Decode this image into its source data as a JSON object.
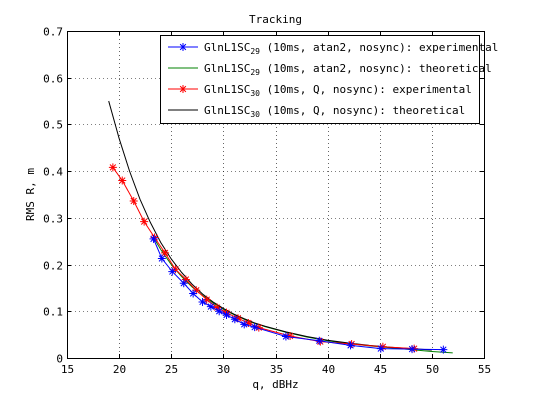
{
  "chart_data": {
    "type": "line",
    "title": "Tracking",
    "xlabel": "q, dBHz",
    "ylabel": "RMS R, m",
    "xlim": [
      15,
      55
    ],
    "ylim": [
      0,
      0.7
    ],
    "xticks": [
      15,
      20,
      25,
      30,
      35,
      40,
      45,
      50,
      55
    ],
    "yticks": [
      0,
      0.1,
      0.2,
      0.3,
      0.4,
      0.5,
      0.6,
      0.7
    ],
    "xtick_labels": [
      "15",
      "20",
      "25",
      "30",
      "35",
      "40",
      "45",
      "50",
      "55"
    ],
    "ytick_labels": [
      "0",
      "0.1",
      "0.2",
      "0.3",
      "0.4",
      "0.5",
      "0.6",
      "0.7"
    ],
    "grid": true,
    "legend_position": "top-right",
    "series": [
      {
        "name_main": "GlnL1SC",
        "name_sub": "29",
        "name_rest": " (10ms, atan2, nosync): experimental",
        "color": "#0000ff",
        "marker": "asterisk",
        "line": true,
        "x": [
          23.3,
          24.1,
          25.1,
          26.2,
          27.1,
          28.0,
          28.8,
          29.6,
          30.3,
          31.1,
          32.0,
          33.0,
          36.0,
          39.2,
          42.2,
          45.1,
          48.1,
          51.1
        ],
        "y": [
          0.255,
          0.213,
          0.185,
          0.16,
          0.138,
          0.12,
          0.11,
          0.1,
          0.092,
          0.083,
          0.072,
          0.066,
          0.046,
          0.037,
          0.027,
          0.02,
          0.019,
          0.018
        ]
      },
      {
        "name_main": "GlnL1SC",
        "name_sub": "29",
        "name_rest": " (10ms, atan2, nosync): theoretical",
        "color": "#008000",
        "marker": "none",
        "line": true,
        "x": [
          23.3,
          24,
          25,
          26,
          27,
          28,
          29,
          30,
          31,
          32,
          33,
          34,
          36,
          38,
          40,
          42,
          44,
          46,
          48,
          50,
          52
        ],
        "y": [
          0.258,
          0.232,
          0.2,
          0.174,
          0.152,
          0.134,
          0.118,
          0.104,
          0.093,
          0.083,
          0.074,
          0.067,
          0.055,
          0.045,
          0.037,
          0.031,
          0.026,
          0.022,
          0.018,
          0.014,
          0.011
        ]
      },
      {
        "name_main": "GlnL1SC",
        "name_sub": "30",
        "name_rest": " (10ms, Q, nosync): experimental",
        "color": "#ff0000",
        "marker": "asterisk",
        "line": true,
        "x": [
          19.4,
          20.3,
          21.4,
          22.4,
          23.4,
          24.4,
          25.4,
          26.4,
          27.4,
          28.4,
          29.4,
          30.3,
          31.4,
          32.4,
          33.4,
          36.4,
          39.3,
          42.3,
          45.3,
          48.3
        ],
        "y": [
          0.408,
          0.38,
          0.336,
          0.292,
          0.258,
          0.225,
          0.19,
          0.168,
          0.145,
          0.125,
          0.108,
          0.097,
          0.085,
          0.075,
          0.065,
          0.047,
          0.035,
          0.03,
          0.024,
          0.02
        ]
      },
      {
        "name_main": "GlnL1SC",
        "name_sub": "30",
        "name_rest": " (10ms, Q, nosync): theoretical",
        "color": "#000000",
        "marker": "none",
        "line": true,
        "x": [
          19,
          20,
          21,
          22,
          23,
          24,
          25,
          26,
          27,
          28,
          29,
          30,
          31,
          32,
          33,
          34,
          36,
          38,
          40,
          42,
          44,
          46,
          48,
          50
        ],
        "y": [
          0.55,
          0.47,
          0.4,
          0.34,
          0.29,
          0.247,
          0.212,
          0.183,
          0.158,
          0.137,
          0.12,
          0.106,
          0.094,
          0.084,
          0.075,
          0.068,
          0.056,
          0.046,
          0.038,
          0.032,
          0.027,
          0.023,
          0.02,
          0.017
        ]
      }
    ]
  }
}
